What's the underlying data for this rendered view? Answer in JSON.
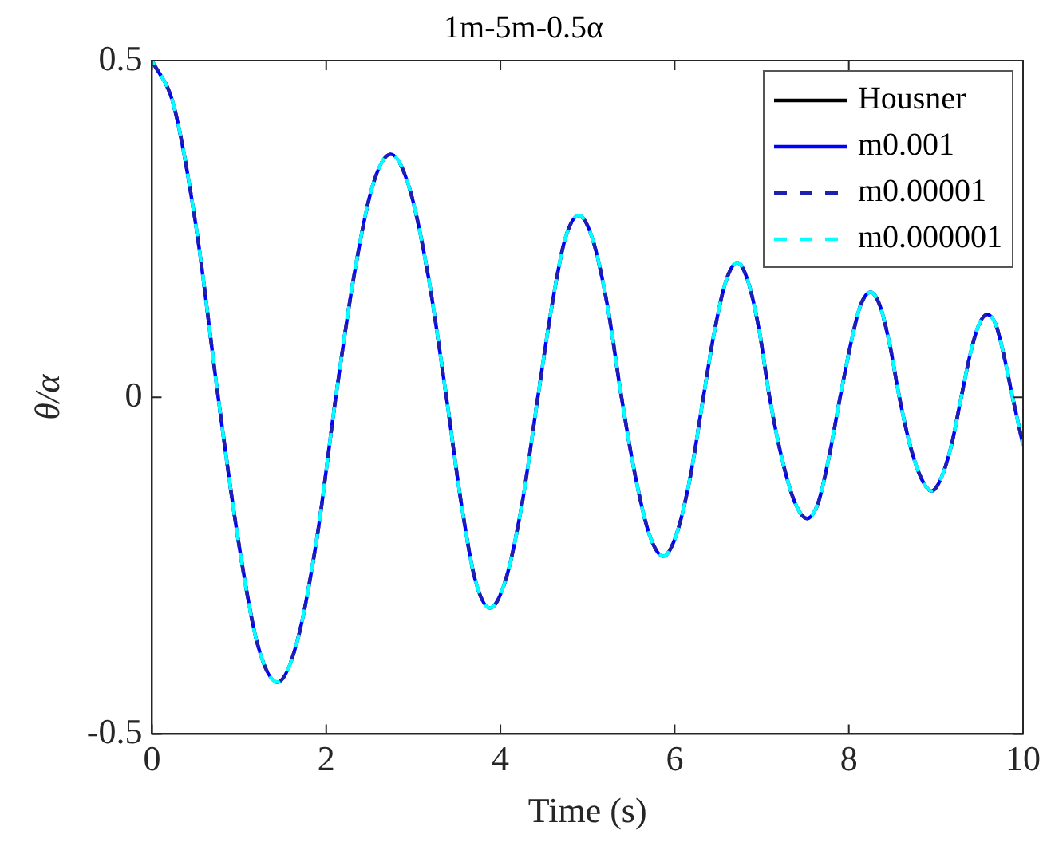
{
  "chart_data": {
    "type": "line",
    "title": "1m-5m-0.5α",
    "xlabel": "Time (s)",
    "ylabel": "θ/α",
    "x": [
      0,
      0.25,
      0.51,
      0.76,
      0.99,
      1.21,
      1.44,
      1.66,
      1.89,
      2.11,
      2.32,
      2.53,
      2.74,
      2.95,
      3.17,
      3.38,
      3.55,
      3.71,
      3.88,
      4.06,
      4.25,
      4.43,
      4.59,
      4.74,
      4.9,
      5.06,
      5.23,
      5.39,
      5.55,
      5.71,
      5.87,
      6.02,
      6.18,
      6.33,
      6.46,
      6.59,
      6.72,
      6.84,
      6.97,
      7.09,
      7.23,
      7.38,
      7.52,
      7.65,
      7.77,
      7.9,
      8.02,
      8.13,
      8.25,
      8.36,
      8.47,
      8.58,
      8.7,
      8.83,
      8.95,
      9.06,
      9.18,
      9.29,
      9.39,
      9.49,
      9.59,
      9.69,
      9.78,
      9.88,
      10
    ],
    "series": [
      {
        "name": "Housner",
        "color": "#000000",
        "line_style": "solid",
        "values": [
          null,
          null,
          null,
          null,
          null,
          null,
          null,
          null,
          null,
          null,
          null,
          null,
          null,
          null,
          null,
          null,
          null,
          null,
          null,
          null,
          null,
          null,
          null,
          null,
          null,
          null,
          null,
          null,
          null,
          null,
          null,
          null,
          null,
          null,
          null,
          null,
          null,
          null,
          null,
          null,
          null,
          null,
          null,
          null,
          null,
          null,
          null,
          null,
          null,
          null,
          null,
          null,
          null,
          null,
          null,
          null,
          null,
          null,
          null,
          null,
          null,
          null,
          null,
          null,
          null
        ]
      },
      {
        "name": "m0.001",
        "color": "#0000ff",
        "line_style": "solid",
        "values": [
          0.5,
          0.433,
          0.25,
          0,
          -0.212,
          -0.366,
          -0.423,
          -0.366,
          -0.212,
          0,
          0.181,
          0.313,
          0.361,
          0.313,
          0.181,
          0,
          -0.157,
          -0.271,
          -0.313,
          -0.271,
          -0.157,
          0,
          0.135,
          0.234,
          0.27,
          0.234,
          0.135,
          0,
          -0.118,
          -0.204,
          -0.236,
          -0.204,
          -0.118,
          0,
          0.1,
          0.173,
          0.2,
          0.173,
          0.1,
          0,
          -0.09,
          -0.156,
          -0.18,
          -0.156,
          -0.09,
          0,
          0.078,
          0.135,
          0.156,
          0.135,
          0.078,
          0,
          -0.07,
          -0.12,
          -0.139,
          -0.12,
          -0.07,
          0,
          0.062,
          0.107,
          0.123,
          0.107,
          0.062,
          0,
          -0.071
        ]
      },
      {
        "name": "m0.00001",
        "color": "#1f1fb0",
        "line_style": "dashed",
        "values": [
          0.5,
          0.433,
          0.25,
          0,
          -0.212,
          -0.366,
          -0.423,
          -0.366,
          -0.212,
          0,
          0.181,
          0.313,
          0.361,
          0.313,
          0.181,
          0,
          -0.157,
          -0.271,
          -0.313,
          -0.271,
          -0.157,
          0,
          0.135,
          0.234,
          0.27,
          0.234,
          0.135,
          0,
          -0.118,
          -0.204,
          -0.236,
          -0.204,
          -0.118,
          0,
          0.1,
          0.173,
          0.2,
          0.173,
          0.1,
          0,
          -0.09,
          -0.156,
          -0.18,
          -0.156,
          -0.09,
          0,
          0.078,
          0.135,
          0.156,
          0.135,
          0.078,
          0,
          -0.07,
          -0.12,
          -0.139,
          -0.12,
          -0.07,
          0,
          0.062,
          0.107,
          0.123,
          0.107,
          0.062,
          0,
          -0.071
        ]
      },
      {
        "name": "m0.000001",
        "color": "#00ffff",
        "line_style": "dashed",
        "values": [
          0.5,
          0.433,
          0.25,
          0,
          -0.212,
          -0.366,
          -0.423,
          -0.366,
          -0.212,
          0,
          0.181,
          0.313,
          0.361,
          0.313,
          0.181,
          0,
          -0.157,
          -0.271,
          -0.313,
          -0.271,
          -0.157,
          0,
          0.135,
          0.234,
          0.27,
          0.234,
          0.135,
          0,
          -0.118,
          -0.204,
          -0.236,
          -0.204,
          -0.118,
          0,
          0.1,
          0.173,
          0.2,
          0.173,
          0.1,
          0,
          -0.09,
          -0.156,
          -0.18,
          -0.156,
          -0.09,
          0,
          0.078,
          0.135,
          0.156,
          0.135,
          0.078,
          0,
          -0.07,
          -0.12,
          -0.139,
          -0.12,
          -0.07,
          0,
          0.062,
          0.107,
          0.123,
          0.107,
          0.062,
          0,
          -0.071
        ]
      }
    ],
    "xlim": [
      0,
      10
    ],
    "xticks": [
      0,
      2,
      4,
      6,
      8,
      10
    ],
    "ylim": [
      -0.5,
      0.5
    ],
    "yticks": [
      -0.5,
      0,
      0.5
    ],
    "grid": false,
    "legend": "top right",
    "marker": "none"
  }
}
